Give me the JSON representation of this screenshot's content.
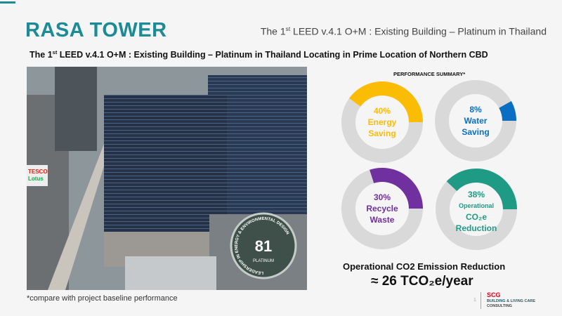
{
  "header": {
    "brand": "RASA TOWER",
    "title_pre": "The 1",
    "title_sup": "st",
    "title_post": " LEED v.4.1 O+M : Existing Building – Platinum in Thailand"
  },
  "subtitle": {
    "pre": "The 1",
    "sup": "st",
    "post": " LEED v.4.1 O+M : Existing Building – Platinum in Thailand Locating in Prime Location of Northern CBD"
  },
  "photo": {
    "badge_score": "81",
    "badge_level": "PLATINUM",
    "badge_ring": "LEADERSHIP IN ENERGY & ENVIRONMENTAL DESIGN",
    "sign": "TESCO Lotus"
  },
  "summary": {
    "title": "PERFORMANCE SUMMARY*",
    "items": [
      {
        "percent": 40,
        "pct_label": "40%",
        "line1": "Energy",
        "line2": "Saving",
        "color": "#fbbc05"
      },
      {
        "percent": 8,
        "pct_label": "8%",
        "line1": "Water",
        "line2": "Saving",
        "color": "#0a6fc2"
      },
      {
        "percent": 30,
        "pct_label": "30%",
        "line1": "Recycle",
        "line2": "Waste",
        "color": "#7030a0"
      },
      {
        "percent": 38,
        "pct_label": "38%",
        "line1": "Operational",
        "line2": "CO₂e",
        "line3": "Reduction",
        "color": "#1f9b85"
      }
    ]
  },
  "emission": {
    "title": "Operational CO2 Emission Reduction",
    "value": "≈ 26 TCO₂e/year"
  },
  "footnote": "*compare with project baseline performance",
  "footer": {
    "page": "1",
    "logo": "SCG",
    "logo_sub1": "BUILDING & LIVING CARE",
    "logo_sub2": "CONSULTING"
  }
}
